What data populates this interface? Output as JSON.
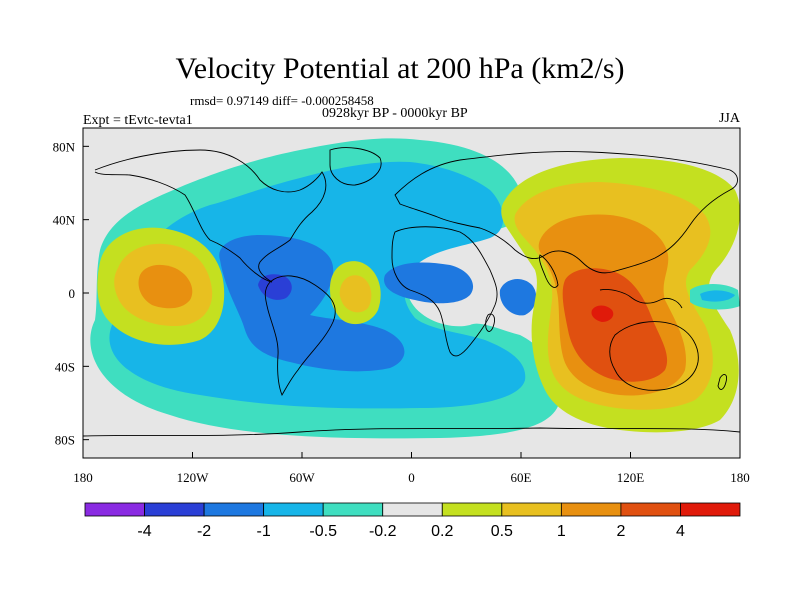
{
  "title": "Velocity Potential at 200 hPa (km2/s)",
  "stats": "rmsd= 0.97149 diff= -0.000258458",
  "subtitle": "0928kyr BP - 0000kyr BP",
  "expt": "Expt = tEvtc-tevta1",
  "season": "JJA",
  "chart_data": {
    "type": "heatmap",
    "projection": "cylindrical-equidistant",
    "xlim": [
      -180,
      180
    ],
    "ylim": [
      -90,
      90
    ],
    "x_ticks": [
      {
        "value": -180,
        "label": "180"
      },
      {
        "value": -120,
        "label": "120W"
      },
      {
        "value": -60,
        "label": "60W"
      },
      {
        "value": 0,
        "label": "0"
      },
      {
        "value": 60,
        "label": "60E"
      },
      {
        "value": 120,
        "label": "120E"
      },
      {
        "value": 180,
        "label": "180"
      }
    ],
    "y_ticks": [
      {
        "value": 80,
        "label": "80N"
      },
      {
        "value": 40,
        "label": "40N"
      },
      {
        "value": 0,
        "label": "0"
      },
      {
        "value": -40,
        "label": "40S"
      },
      {
        "value": -80,
        "label": "80S"
      }
    ],
    "levels": [
      -4,
      -2,
      -1,
      -0.5,
      -0.2,
      0.2,
      0.5,
      1,
      2,
      4
    ],
    "level_labels": [
      "-4",
      "-2",
      "-1",
      "-0.5",
      "-0.2",
      "0.2",
      "0.5",
      "1",
      "2",
      "4"
    ],
    "colors": [
      "#8a2be2",
      "#2a3fd6",
      "#1e78e0",
      "#17b5e8",
      "#3fdec0",
      "#e6e6e6",
      "#c4e020",
      "#e8c020",
      "#e89010",
      "#e05010",
      "#e01a0a"
    ],
    "features": [
      {
        "lon": -85,
        "lat": 2,
        "rx": 9,
        "ry": 7,
        "value": -2.5
      },
      {
        "lon": -70,
        "lat": 0,
        "rx": 55,
        "ry": 40,
        "value": -1.2
      },
      {
        "lon": -60,
        "lat": -25,
        "rx": 50,
        "ry": 22,
        "value": -0.8
      },
      {
        "lon": -5,
        "lat": 8,
        "rx": 22,
        "ry": 14,
        "value": -1.0
      },
      {
        "lon": 60,
        "lat": 2,
        "rx": 10,
        "ry": 10,
        "value": -1.0
      },
      {
        "lon": -150,
        "lat": 10,
        "rx": 18,
        "ry": 15,
        "value": 2.0
      },
      {
        "lon": -35,
        "lat": 4,
        "rx": 8,
        "ry": 8,
        "value": 0.8
      },
      {
        "lon": 110,
        "lat": 0,
        "rx": 30,
        "ry": 45,
        "value": 2.5
      },
      {
        "lon": 105,
        "lat": -10,
        "rx": 8,
        "ry": 5,
        "value": 4.5
      },
      {
        "lon": 100,
        "lat": 35,
        "rx": 35,
        "ry": 30,
        "value": 1.5
      },
      {
        "lon": 150,
        "lat": 0,
        "rx": 10,
        "ry": 5,
        "value": -0.6
      }
    ]
  }
}
